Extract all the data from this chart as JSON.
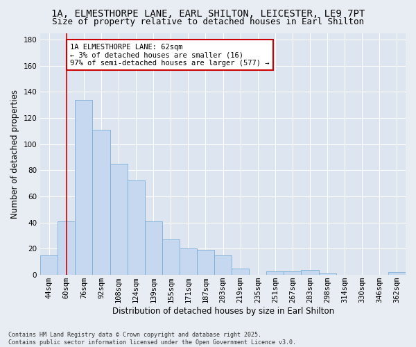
{
  "title_line1": "1A, ELMESTHORPE LANE, EARL SHILTON, LEICESTER, LE9 7PT",
  "title_line2": "Size of property relative to detached houses in Earl Shilton",
  "xlabel": "Distribution of detached houses by size in Earl Shilton",
  "ylabel": "Number of detached properties",
  "categories": [
    "44sqm",
    "60sqm",
    "76sqm",
    "92sqm",
    "108sqm",
    "124sqm",
    "139sqm",
    "155sqm",
    "171sqm",
    "187sqm",
    "203sqm",
    "219sqm",
    "235sqm",
    "251sqm",
    "267sqm",
    "283sqm",
    "298sqm",
    "314sqm",
    "330sqm",
    "346sqm",
    "362sqm"
  ],
  "values": [
    15,
    41,
    134,
    111,
    85,
    72,
    41,
    27,
    20,
    19,
    15,
    5,
    0,
    3,
    3,
    4,
    1,
    0,
    0,
    0,
    2
  ],
  "bar_color": "#c5d8f0",
  "bar_edge_color": "#7aadd4",
  "fig_bg_color": "#e8edf3",
  "ax_bg_color": "#dce5f0",
  "grid_color": "#ffffff",
  "vline_color": "#cc0000",
  "vline_x_index": 1,
  "annotation_text": "1A ELMESTHORPE LANE: 62sqm\n← 3% of detached houses are smaller (16)\n97% of semi-detached houses are larger (577) →",
  "annotation_box_edge_color": "#cc0000",
  "annotation_box_face_color": "#ffffff",
  "ylim": [
    0,
    185
  ],
  "yticks": [
    0,
    20,
    40,
    60,
    80,
    100,
    120,
    140,
    160,
    180
  ],
  "footer_text": "Contains HM Land Registry data © Crown copyright and database right 2025.\nContains public sector information licensed under the Open Government Licence v3.0.",
  "title_fontsize": 10,
  "subtitle_fontsize": 9,
  "axis_label_fontsize": 8.5,
  "tick_fontsize": 7.5,
  "annotation_fontsize": 7.5,
  "footer_fontsize": 6
}
